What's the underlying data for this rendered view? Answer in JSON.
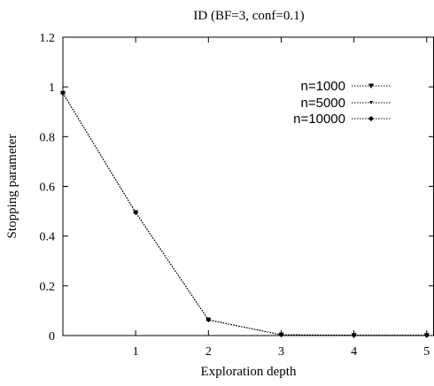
{
  "chart_data": {
    "type": "line",
    "title": "ID (BF=3, conf=0.1)",
    "xlabel": "Exploration depth",
    "ylabel": "Stopping parameter",
    "xlim": [
      0,
      5.1
    ],
    "ylim": [
      0,
      1.2
    ],
    "xticks": [
      1,
      2,
      3,
      4,
      5
    ],
    "yticks": [
      0,
      0.2,
      0.4,
      0.6,
      0.8,
      1,
      1.2
    ],
    "grid": false,
    "legend_position": "top-right",
    "x": [
      0,
      1,
      2,
      3,
      4,
      5
    ],
    "series": [
      {
        "name": "n=1000",
        "marker": "triangle-down-filled",
        "values": [
          0.975,
          0.495,
          0.063,
          0.003,
          0.001,
          0.001
        ]
      },
      {
        "name": "n=5000",
        "marker": "triangle-down-small",
        "values": [
          0.975,
          0.495,
          0.063,
          0.003,
          0.001,
          0.001
        ]
      },
      {
        "name": "n=10000",
        "marker": "diamond",
        "values": [
          0.975,
          0.495,
          0.063,
          0.003,
          0.001,
          0.001
        ]
      }
    ]
  }
}
